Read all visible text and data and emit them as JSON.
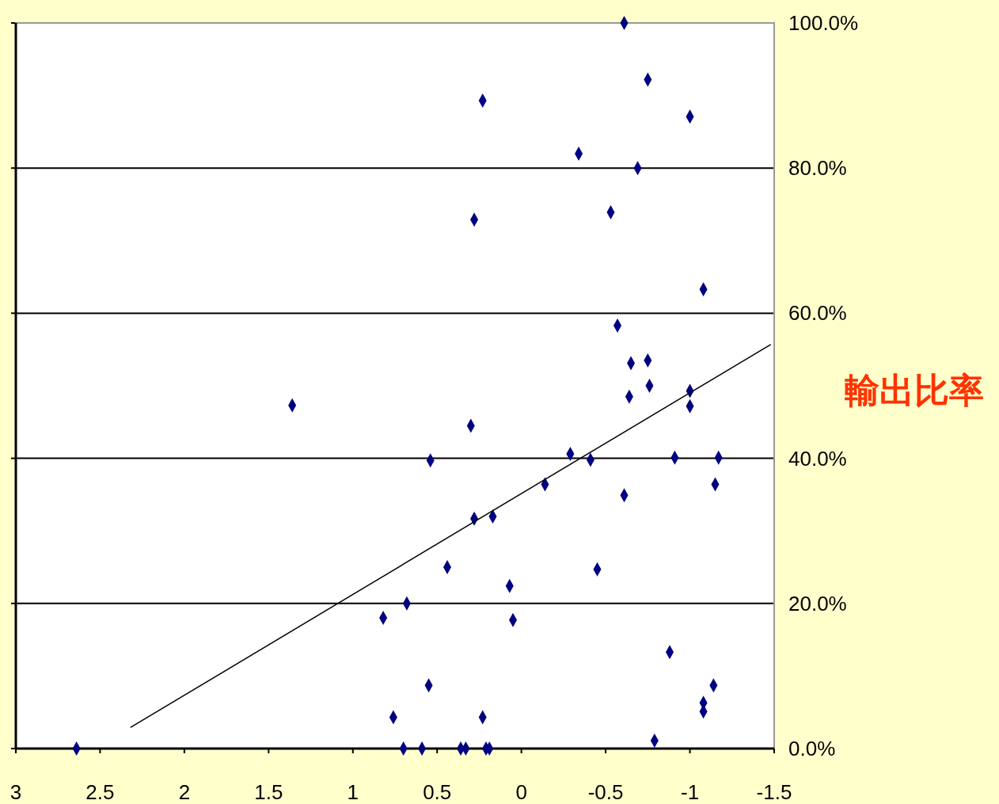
{
  "chart_data": {
    "type": "scatter",
    "ylabel": "輸出比率",
    "xlim": [
      3,
      -1.5
    ],
    "xticks": [
      3,
      2.5,
      2,
      1.5,
      1,
      0.5,
      0,
      -0.5,
      -1,
      -1.5
    ],
    "ylim": [
      0,
      100
    ],
    "yticks": [
      {
        "value": 0,
        "label": "0.0%"
      },
      {
        "value": 20,
        "label": "20.0%"
      },
      {
        "value": 40,
        "label": "40.0%"
      },
      {
        "value": 60,
        "label": "60.0%"
      },
      {
        "value": 80,
        "label": "80.0%"
      },
      {
        "value": 100,
        "label": "100.0%"
      }
    ],
    "grid": "y",
    "series": [
      {
        "marker": "diamond",
        "color": "#000080",
        "x": [
          -0.61,
          -0.75,
          0.23,
          -1.0,
          -0.34,
          -0.69,
          -0.53,
          0.28,
          -1.08,
          -0.57,
          -0.65,
          -0.75,
          -0.76,
          -0.64,
          -1.0,
          -1.0,
          1.36,
          0.3,
          0.54,
          -0.29,
          -0.41,
          -0.91,
          -1.17,
          -0.14,
          -1.15,
          -0.61,
          0.28,
          0.17,
          0.44,
          -0.45,
          0.07,
          0.68,
          0.82,
          0.05,
          -0.88,
          0.55,
          -1.14,
          -1.08,
          -1.08,
          0.76,
          0.23,
          -0.79,
          2.64,
          0.7,
          0.59,
          0.36,
          0.33,
          0.21,
          0.19
        ],
        "values": [
          100,
          92.2,
          89.3,
          87.1,
          82.0,
          80.0,
          73.9,
          72.9,
          63.3,
          58.3,
          53.1,
          53.5,
          50.0,
          48.5,
          49.3,
          47.2,
          47.3,
          44.5,
          39.7,
          40.6,
          39.8,
          40.1,
          40.1,
          36.4,
          36.4,
          34.9,
          31.7,
          32.0,
          25.0,
          24.7,
          22.4,
          20.0,
          18.0,
          17.7,
          13.3,
          8.7,
          8.7,
          6.3,
          5.1,
          4.3,
          4.3,
          1.1,
          0,
          0,
          0,
          0,
          0,
          0,
          0
        ]
      },
      {
        "type": "line",
        "color": "#000000",
        "x": [
          2.32,
          -1.48
        ],
        "values": [
          2.9,
          55.7
        ]
      }
    ]
  }
}
